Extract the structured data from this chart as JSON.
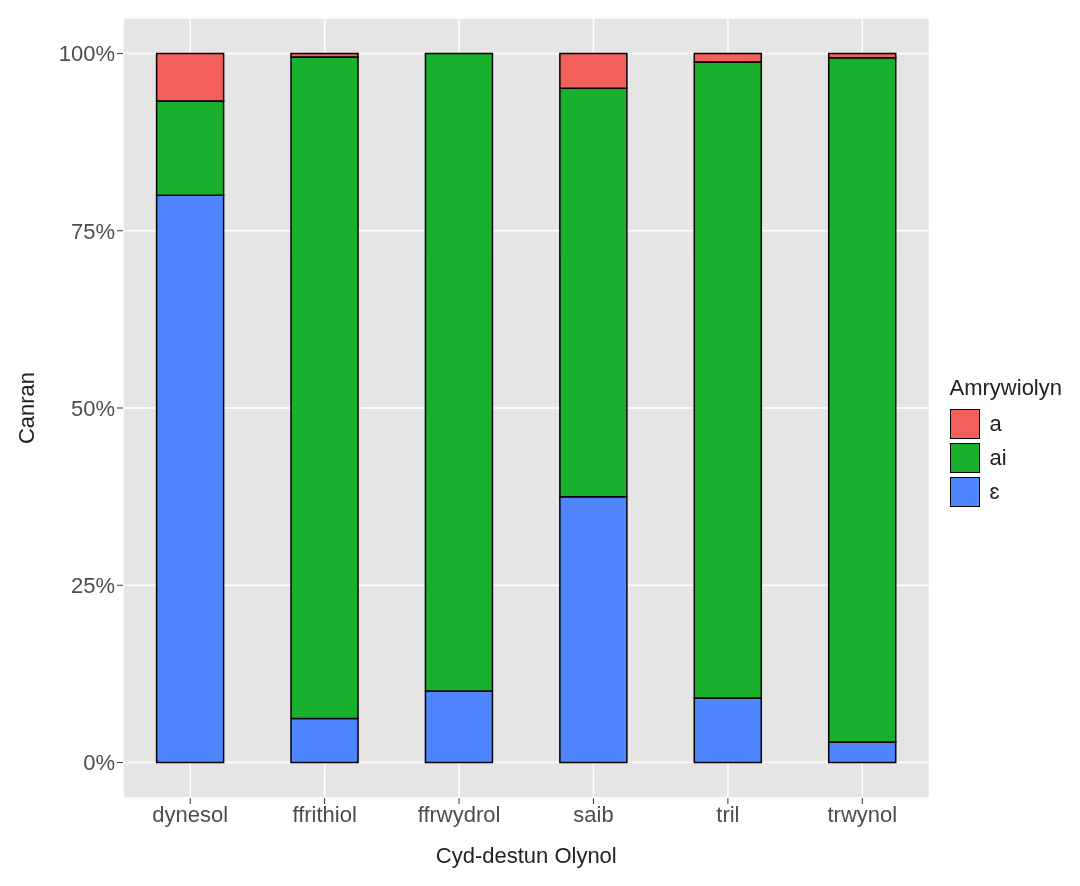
{
  "chart_data": {
    "type": "bar",
    "stacked": true,
    "xlabel": "Cyd-destun Olynol",
    "ylabel": "Canran",
    "legend_title": "Amrywiolyn",
    "legend": "right",
    "grid": true,
    "categories": [
      "dynesol",
      "ffrithiol",
      "ffrwydrol",
      "saib",
      "tril",
      "trwynol"
    ],
    "ylim": [
      -0.05,
      1.05
    ],
    "yticks": [
      {
        "value": 0,
        "label": "0%"
      },
      {
        "value": 0.25,
        "label": "25%"
      },
      {
        "value": 0.5,
        "label": "50%"
      },
      {
        "value": 0.75,
        "label": "75%"
      },
      {
        "value": 1,
        "label": "100%"
      }
    ],
    "series": [
      {
        "name": "ɛ",
        "color": "#4f86ff",
        "values": [
          0.8,
          0.062,
          0.101,
          0.375,
          0.091,
          0.029
        ]
      },
      {
        "name": "ai",
        "color": "#19b02d",
        "values": [
          0.133,
          0.933,
          0.899,
          0.576,
          0.897,
          0.965
        ]
      },
      {
        "name": "a",
        "color": "#f35f5a",
        "values": [
          0.067,
          0.005,
          0,
          0.049,
          0.012,
          0.006
        ]
      }
    ]
  }
}
